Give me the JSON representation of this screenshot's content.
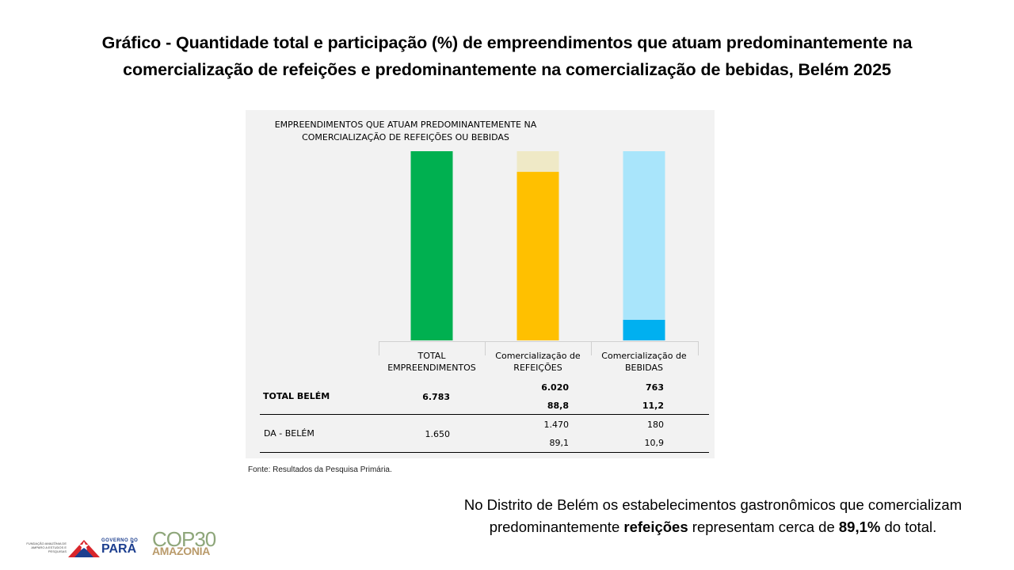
{
  "slide": {
    "title": "Gráfico - Quantidade total e participação (%) de empreendimentos que atuam predominantemente na comercialização de refeições e predominantemente na comercialização de bebidas, Belém 2025",
    "source": "Fonte: Resultados da Pesquisa Primária.",
    "note_part1": "No Distrito de Belém os estabelecimentos gastronômicos que comercializam predominantemente ",
    "note_bold1": "refeições",
    "note_part2": " representam cerca de ",
    "note_bold2": "89,1%",
    "note_part3": " do total."
  },
  "logos": {
    "fapespa": "FUNDAÇÃO AMAZÔNIA DE AMPARO A ESTUDOS E PESQUISAS",
    "gov_small": "GOVERNO DO",
    "gov_big": "PARÁ",
    "cop_top": "COP30",
    "cop_bottom": "AMAZONIA"
  },
  "chart_data": {
    "type": "bar",
    "stacked": true,
    "title": "EMPREENDIMENTOS QUE ATUAM PREDOMINANTEMENTE NA COMERCIALIZAÇÃO DE REFEIÇÕES OU BEBIDAS",
    "categories": [
      "TOTAL EMPREENDIMENTOS",
      "Comercialização de REFEIÇÕES",
      "Comercialização de BEBIDAS"
    ],
    "ylim": [
      0,
      100
    ],
    "series": [
      {
        "values": [
          100,
          89.1,
          10.9
        ],
        "colors": [
          "#00b050",
          "#ffc000",
          "#00b0f0"
        ]
      },
      {
        "values": [
          0,
          10.9,
          89.1
        ],
        "colors": [
          "#00b050",
          "#efe9c6",
          "#a9e5fb"
        ]
      }
    ],
    "table": {
      "rows": [
        {
          "label": "TOTAL BELÉM",
          "total": "6.783",
          "refeicoes": "6.020",
          "bebidas": "763",
          "refeicoes_pct": "88,8",
          "bebidas_pct": "11,2"
        },
        {
          "label": "DA - BELÉM",
          "total": "1.650",
          "refeicoes": "1.470",
          "bebidas": "180",
          "refeicoes_pct": "89,1",
          "bebidas_pct": "10,9"
        }
      ]
    }
  }
}
